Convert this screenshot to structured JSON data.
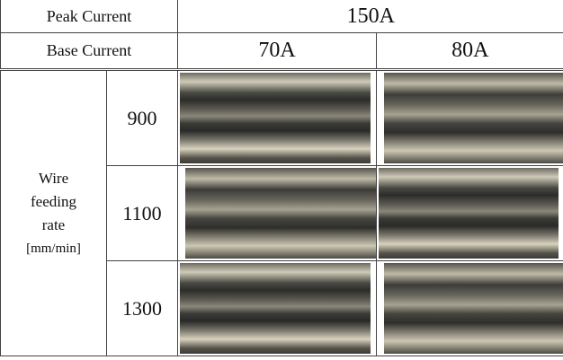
{
  "table": {
    "header": {
      "peak_label": "Peak Current",
      "peak_value": "150A",
      "base_label": "Base Current",
      "base_values": [
        "70A",
        "80A"
      ]
    },
    "row_group_label": [
      "Wire",
      "feeding",
      "rate",
      "[mm/min]"
    ],
    "rows": [
      "900",
      "1100",
      "1300"
    ]
  }
}
